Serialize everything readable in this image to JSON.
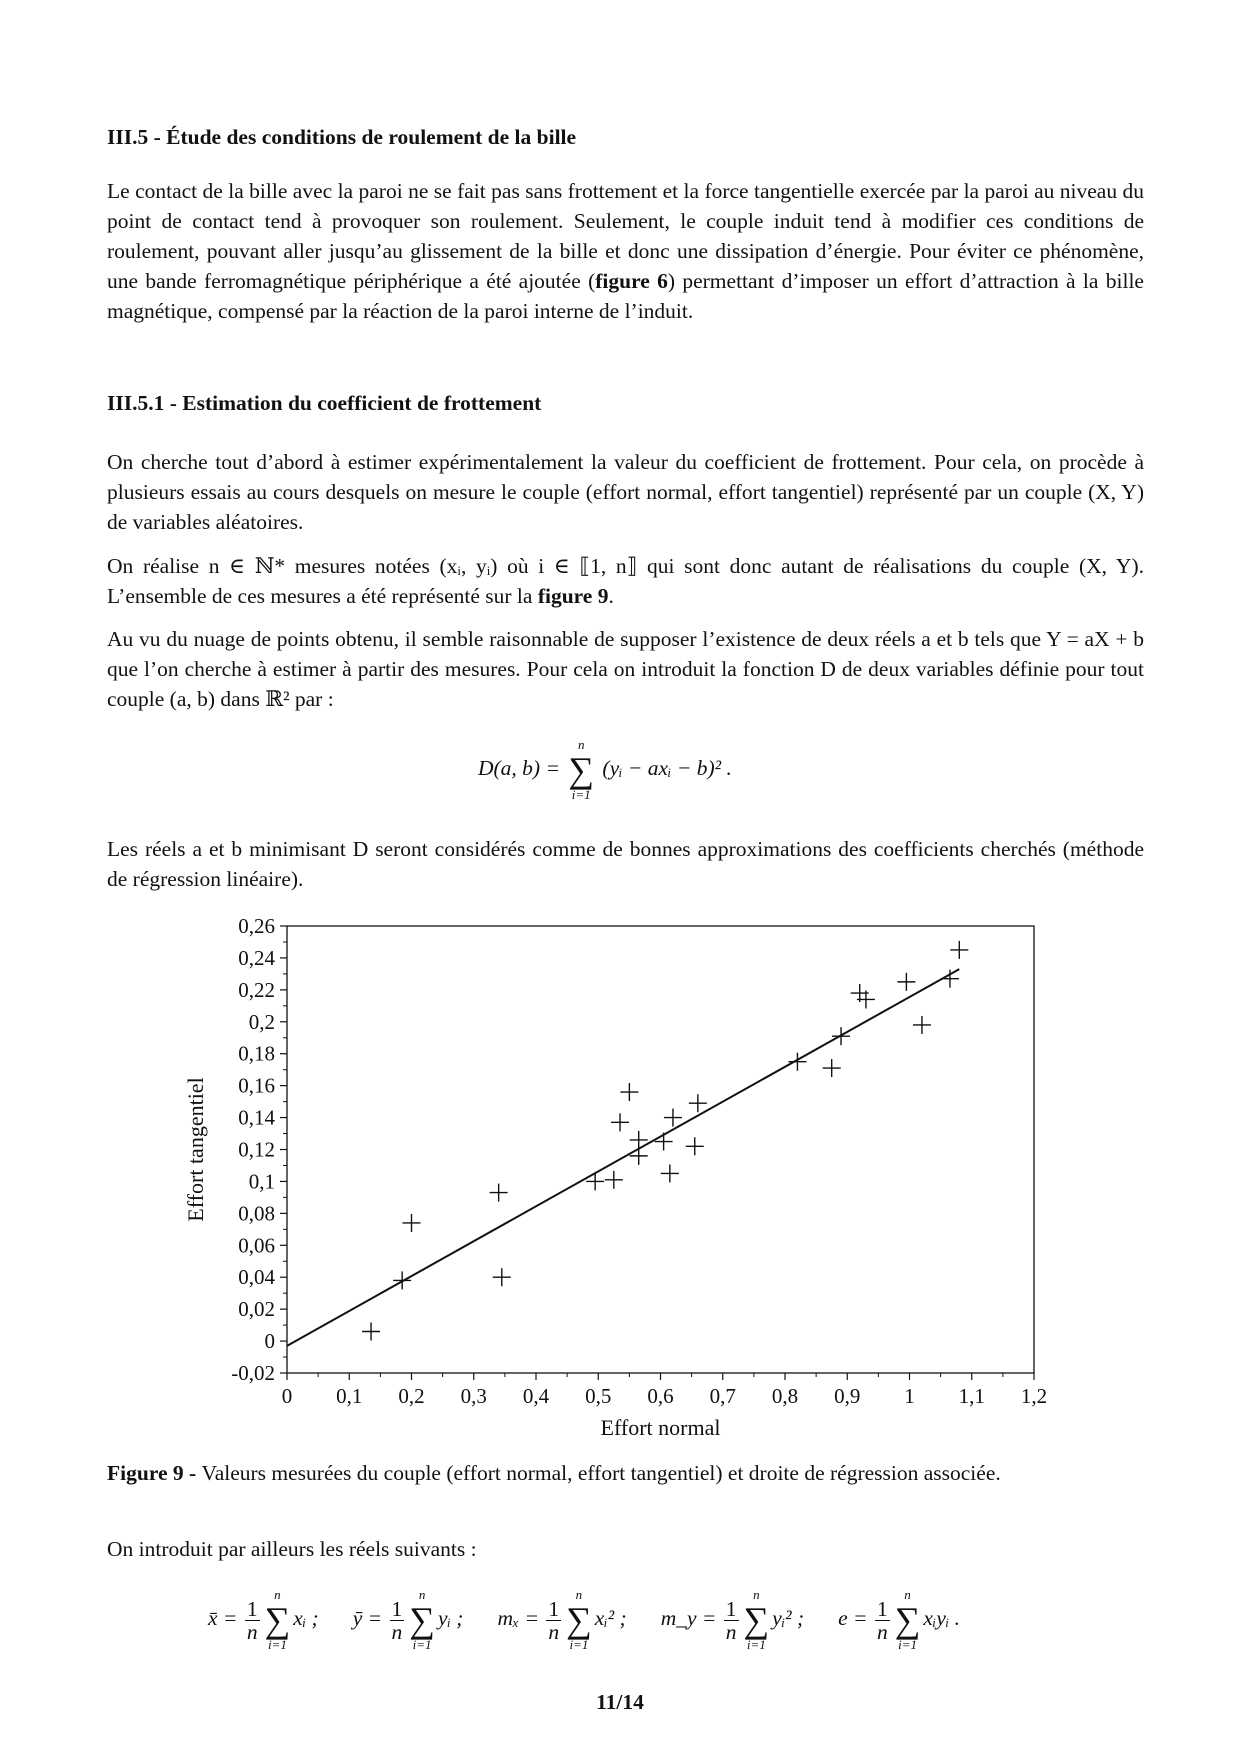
{
  "section": {
    "heading": "III.5 - Étude des conditions de roulement de la bille",
    "p1_a": "Le contact de la bille avec la paroi ne se fait pas sans frottement et la force tangentielle exercée par la paroi au niveau du point de contact tend à provoquer son roulement. Seulement, le couple induit tend à modifier ces conditions de roulement, pouvant aller jusqu’au glissement de la bille et donc une dissipation d’énergie. Pour éviter ce phénomène, une bande ferromagnétique périphérique a été ajoutée (",
    "p1_bold": "figure 6",
    "p1_b": ") permettant d’imposer un effort d’attraction à la bille magnétique, compensé par la réaction de la paroi interne de l’induit."
  },
  "subsection": {
    "heading": "III.5.1 - Estimation du coefficient de frottement",
    "p2": "On cherche tout d’abord à estimer expérimentalement la valeur du coefficient de frottement. Pour cela, on procède à plusieurs essais au cours desquels on mesure le couple (effort normal, effort tangentiel) représenté par un couple (X, Y) de variables aléatoires.",
    "p3_a": "On réalise n ∈ ℕ* mesures notées (xᵢ, yᵢ) où i ∈ ⟦1, n⟧ qui sont donc autant de réalisations du couple (X, Y). L’ensemble de ces mesures a été représenté sur la ",
    "p3_bold": "figure 9",
    "p3_b": ".",
    "p4": "Au vu du nuage de points obtenu, il semble raisonnable de supposer l’existence de deux réels a et b tels que Y = aX + b que l’on cherche à estimer à partir des mesures. Pour cela on introduit la fonction D de deux variables définie pour tout couple (a, b) dans ℝ² par :",
    "formula_lhs": "D(a, b) = ",
    "formula_sum_top": "n",
    "formula_sum_bottom": "i=1",
    "formula_rhs": "(yᵢ − axᵢ − b)²  .",
    "p5": "Les réels a et b minimisant D seront considérés comme de bonnes approximations des coefficients cherchés (méthode de régression linéaire)."
  },
  "figure": {
    "caption_bold": "Figure 9 - ",
    "caption": "Valeurs mesurées du couple (effort normal, effort tangentiel) et droite de régression associée."
  },
  "chart_data": {
    "type": "scatter",
    "xlabel": "Effort normal",
    "ylabel": "Effort tangentiel",
    "xlim": [
      0,
      1.2
    ],
    "ylim": [
      -0.02,
      0.26
    ],
    "x_ticks": [
      0,
      0.1,
      0.2,
      0.3,
      0.4,
      0.5,
      0.6,
      0.7,
      0.8,
      0.9,
      1,
      1.1,
      1.2
    ],
    "x_tick_labels": [
      "0",
      "0,1",
      "0,2",
      "0,3",
      "0,4",
      "0,5",
      "0,6",
      "0,7",
      "0,8",
      "0,9",
      "1",
      "1,1",
      "1,2"
    ],
    "y_ticks": [
      -0.02,
      0,
      0.02,
      0.04,
      0.06,
      0.08,
      0.1,
      0.12,
      0.14,
      0.16,
      0.18,
      0.2,
      0.22,
      0.24,
      0.26
    ],
    "y_tick_labels": [
      "-0,02",
      "0",
      "0,02",
      "0,04",
      "0,06",
      "0,08",
      "0,1",
      "0,12",
      "0,14",
      "0,16",
      "0,18",
      "0,2",
      "0,22",
      "0,24",
      "0,26"
    ],
    "marker": "plus",
    "points": [
      [
        0.135,
        0.006
      ],
      [
        0.185,
        0.038
      ],
      [
        0.2,
        0.074
      ],
      [
        0.34,
        0.093
      ],
      [
        0.345,
        0.04
      ],
      [
        0.495,
        0.1
      ],
      [
        0.525,
        0.101
      ],
      [
        0.535,
        0.137
      ],
      [
        0.55,
        0.156
      ],
      [
        0.565,
        0.126
      ],
      [
        0.565,
        0.116
      ],
      [
        0.605,
        0.125
      ],
      [
        0.62,
        0.14
      ],
      [
        0.615,
        0.105
      ],
      [
        0.66,
        0.149
      ],
      [
        0.655,
        0.122
      ],
      [
        0.82,
        0.175
      ],
      [
        0.875,
        0.171
      ],
      [
        0.89,
        0.191
      ],
      [
        0.92,
        0.218
      ],
      [
        0.93,
        0.214
      ],
      [
        0.995,
        0.225
      ],
      [
        1.02,
        0.198
      ],
      [
        1.065,
        0.227
      ],
      [
        1.08,
        0.245
      ]
    ],
    "regression_line": {
      "x": [
        0,
        1.08
      ],
      "y": [
        -0.003,
        0.233
      ]
    },
    "grid": false,
    "color": "#111111"
  },
  "after": {
    "intro": "On introduit par ailleurs les réels suivants :",
    "defs": [
      {
        "lhs": "x̄ = ",
        "term": "xᵢ ;"
      },
      {
        "lhs": "ȳ = ",
        "term": "yᵢ ;"
      },
      {
        "lhs": "mₓ = ",
        "term": "xᵢ² ;"
      },
      {
        "lhs": "m_y = ",
        "term": "yᵢ² ;"
      },
      {
        "lhs": "e = ",
        "term": "xᵢyᵢ ."
      }
    ],
    "frac_num": "1",
    "frac_den": "n",
    "sum_top": "n",
    "sum_bottom": "i=1",
    "sum_symbol": "∑"
  },
  "page_number": "11/14"
}
